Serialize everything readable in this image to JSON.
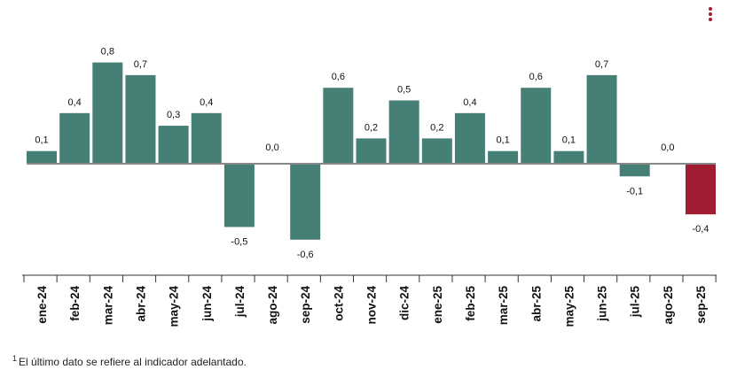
{
  "chart_data": {
    "type": "bar",
    "categories": [
      "ene-24",
      "feb-24",
      "mar-24",
      "abr-24",
      "may-24",
      "jun-24",
      "jul-24",
      "ago-24",
      "sep-24",
      "oct-24",
      "nov-24",
      "dic-24",
      "ene-25",
      "feb-25",
      "mar-25",
      "abr-25",
      "may-25",
      "jun-25",
      "jul-25",
      "ago-25",
      "sep-25"
    ],
    "values": [
      0.1,
      0.4,
      0.8,
      0.7,
      0.3,
      0.4,
      -0.5,
      0.0,
      -0.6,
      0.6,
      0.2,
      0.5,
      0.2,
      0.4,
      0.1,
      0.6,
      0.1,
      0.7,
      -0.1,
      0.0,
      -0.4
    ],
    "data_labels": [
      "0,1",
      "0,4",
      "0,8",
      "0,7",
      "0,3",
      "0,4",
      "-0,5",
      "0,0",
      "-0,6",
      "0,6",
      "0,2",
      "0,5",
      "0,2",
      "0,4",
      "0,1",
      "0,6",
      "0,1",
      "0,7",
      "-0,1",
      "0,0",
      "-0,4"
    ],
    "highlight_index": 20,
    "colors": {
      "bar": "#467f76",
      "highlight": "#a01c33",
      "zero_line": "#888888",
      "axis": "#333333"
    },
    "grid": false,
    "legend": "none",
    "title": "",
    "xlabel": "",
    "ylabel": ""
  },
  "footnote": {
    "marker": "1",
    "text": "El último dato se refiere al indicador adelantado."
  },
  "menu": {
    "icon": "kebab-menu-icon",
    "color": "#a01c33"
  }
}
